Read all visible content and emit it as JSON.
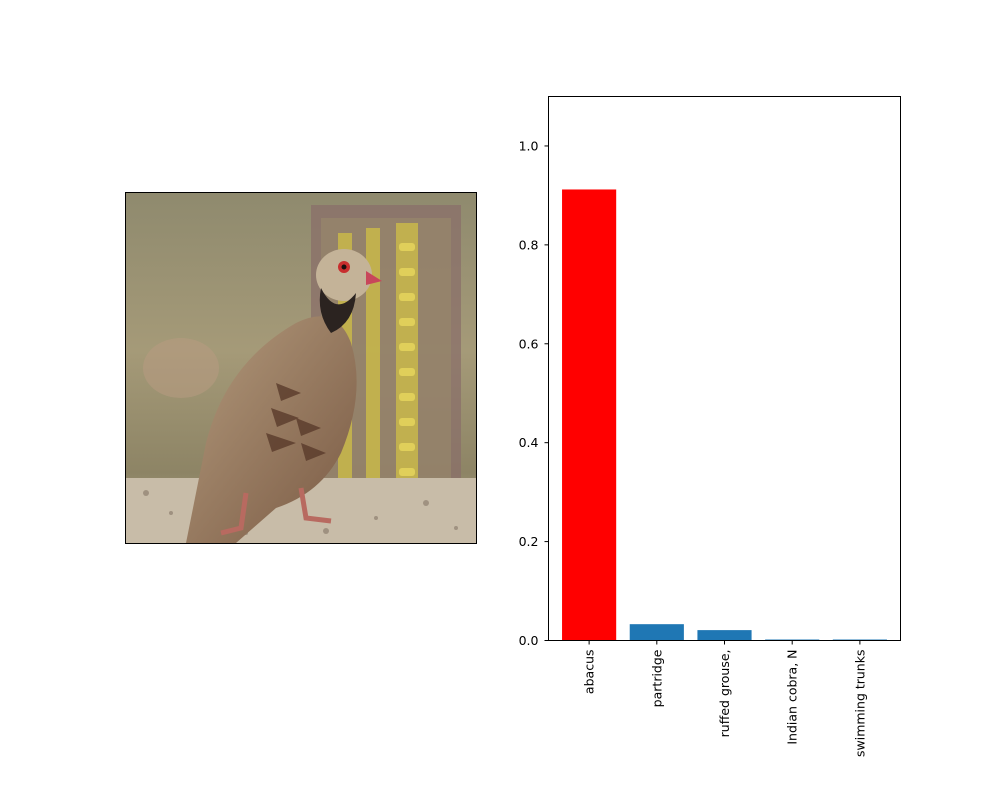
{
  "image_panel": {
    "description_icon": "bird-photo"
  },
  "chart_data": {
    "type": "bar",
    "categories": [
      "abacus",
      "partridge",
      "ruffed grouse,",
      "Indian cobra, N",
      "swimming trunks"
    ],
    "values": [
      0.912,
      0.033,
      0.021,
      0.002,
      0.002
    ],
    "bar_colors": [
      "#ff0000",
      "#1f77b4",
      "#1f77b4",
      "#1f77b4",
      "#1f77b4"
    ],
    "ylim": [
      0,
      1.1
    ],
    "yticks": [
      0.0,
      0.2,
      0.4,
      0.6,
      0.8,
      1.0
    ],
    "ytick_labels": [
      "0.0",
      "0.2",
      "0.4",
      "0.6",
      "0.8",
      "1.0"
    ],
    "grid": false,
    "title": "",
    "xlabel": "",
    "ylabel": ""
  }
}
